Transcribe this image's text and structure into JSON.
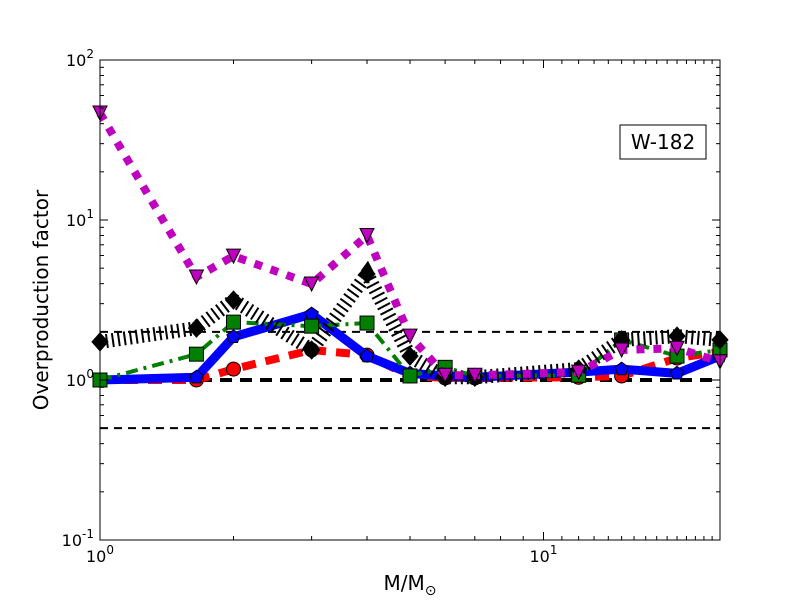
{
  "chart_data": {
    "type": "line",
    "title": "",
    "xlabel": "M/M",
    "xlabel_sub": "⊙",
    "ylabel": "Overproduction factor",
    "xscale": "log",
    "yscale": "log",
    "xlim": [
      1,
      25
    ],
    "ylim": [
      0.1,
      100
    ],
    "xticks": [
      {
        "value": 1,
        "base": "10",
        "exp": "0"
      },
      {
        "value": 10,
        "base": "10",
        "exp": "1"
      }
    ],
    "yticks": [
      {
        "value": 0.1,
        "base": "10",
        "exp": "-1"
      },
      {
        "value": 1,
        "base": "10",
        "exp": "0"
      },
      {
        "value": 10,
        "base": "10",
        "exp": "1"
      },
      {
        "value": 100,
        "base": "10",
        "exp": "2"
      }
    ],
    "annotation": "W-182",
    "annotation_placement": "top-right",
    "reference_lines": [
      {
        "y": 0.5,
        "style": "thin-dashed"
      },
      {
        "y": 1,
        "style": "thick-dashed"
      },
      {
        "y": 2,
        "style": "thin-dashed"
      }
    ],
    "x": [
      1,
      1.65,
      2,
      3,
      4,
      5,
      6,
      7,
      12,
      15,
      20,
      25
    ],
    "series": [
      {
        "name": "red",
        "color": "#ff0000",
        "marker": "circle",
        "style": "dashed",
        "values": [
          1.0,
          1.0,
          1.17,
          1.54,
          1.43,
          1.06,
          1.03,
          1.03,
          1.04,
          1.06,
          1.37,
          1.5
        ]
      },
      {
        "name": "blue",
        "color": "#0000ff",
        "marker": "pentagon",
        "style": "solid",
        "values": [
          1.0,
          1.04,
          1.86,
          2.58,
          1.41,
          1.1,
          1.06,
          1.04,
          1.12,
          1.17,
          1.1,
          1.41
        ]
      },
      {
        "name": "green",
        "color": "#007f00",
        "marker": "square",
        "style": "dashdot",
        "values": [
          1.0,
          1.45,
          2.3,
          2.17,
          2.27,
          1.06,
          1.2,
          1.06,
          1.07,
          1.78,
          1.41,
          1.54
        ]
      },
      {
        "name": "black",
        "color": "#000000",
        "marker": "diamond",
        "style": "hatched",
        "values": [
          1.73,
          2.11,
          3.16,
          1.54,
          4.6,
          1.41,
          1.04,
          1.04,
          1.17,
          1.78,
          1.88,
          1.78
        ]
      },
      {
        "name": "magenta",
        "color": "#bf00bf",
        "marker": "triangle-down",
        "style": "dotted",
        "values": [
          46.6,
          4.4,
          5.95,
          3.98,
          8.0,
          1.88,
          1.07,
          1.07,
          1.12,
          1.54,
          1.58,
          1.3
        ]
      }
    ]
  }
}
